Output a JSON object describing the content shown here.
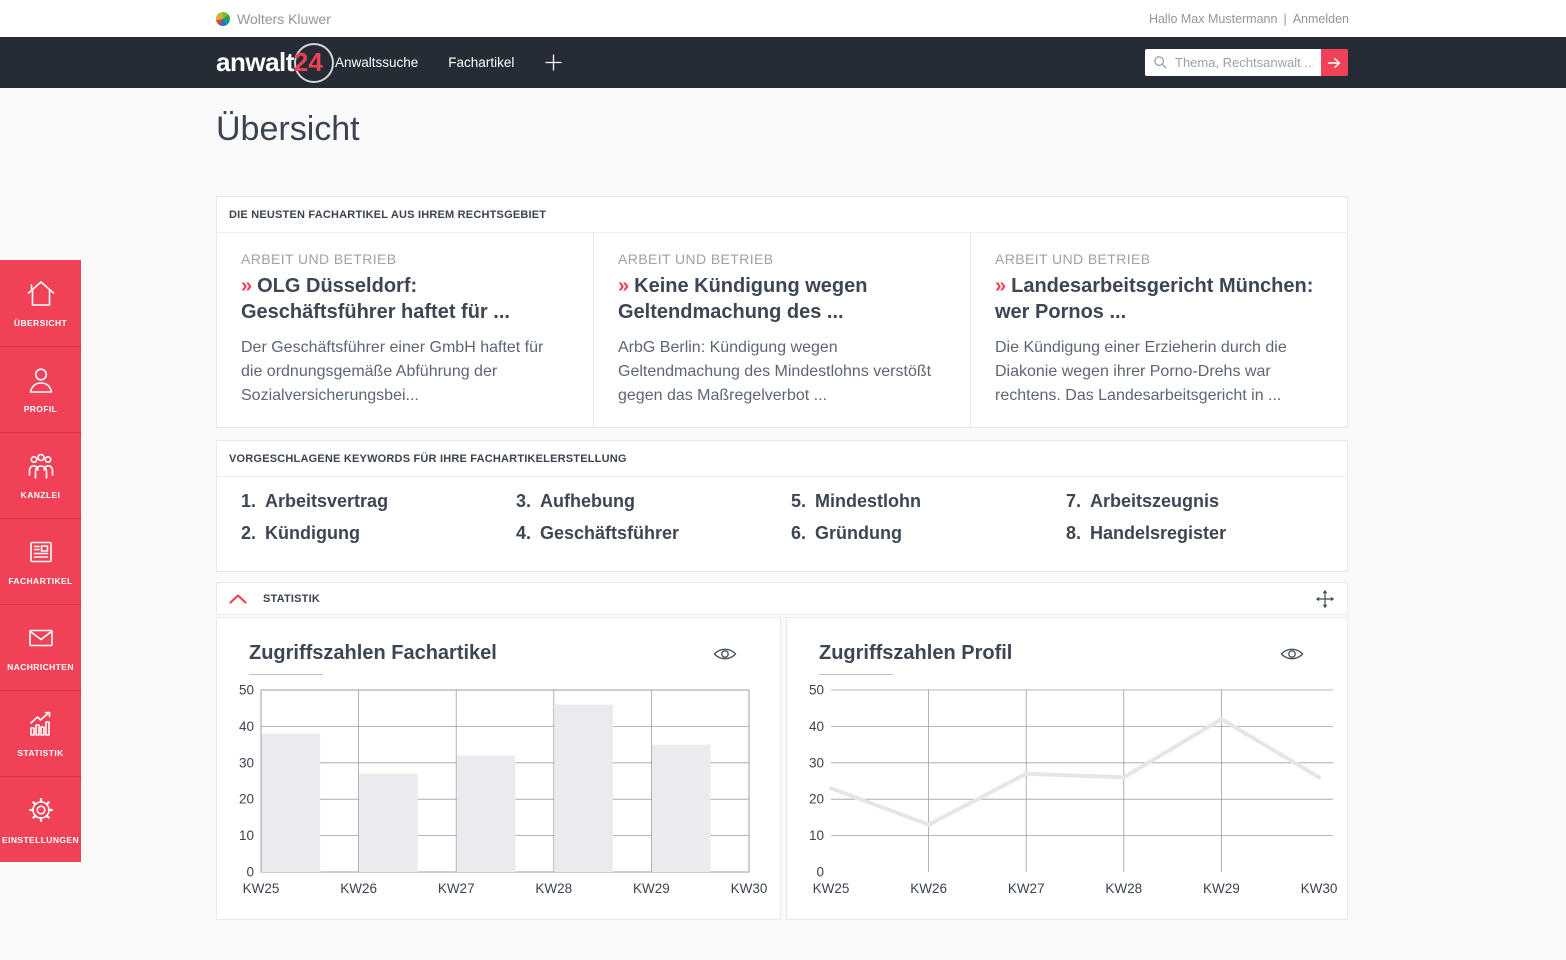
{
  "topbar": {
    "brand": "Wolters Kluwer",
    "greeting": "Hallo Max Mustermann",
    "separator": "|",
    "login": "Anmelden"
  },
  "navbar": {
    "logo_text": "anwalt",
    "logo_badge": "24",
    "links": [
      {
        "label": "Anwaltssuche"
      },
      {
        "label": "Fachartikel"
      }
    ],
    "search": {
      "placeholder": "Thema, Rechtsanwalt ..."
    }
  },
  "page": {
    "title": "Übersicht"
  },
  "sidebar": {
    "items": [
      {
        "label": "ÜBERSICHT",
        "icon": "home-icon"
      },
      {
        "label": "PROFIL",
        "icon": "user-icon"
      },
      {
        "label": "KANZLEI",
        "icon": "team-icon"
      },
      {
        "label": "FACHARTIKEL",
        "icon": "article-icon"
      },
      {
        "label": "NACHRICHTEN",
        "icon": "mail-icon"
      },
      {
        "label": "STATISTIK",
        "icon": "bar-chart-icon"
      },
      {
        "label": "EINSTELLUNGEN",
        "icon": "gear-icon"
      }
    ]
  },
  "sections": {
    "articles": {
      "header": "DIE NEUSTEN FACHARTIKEL AUS IHREM RECHTSGEBIET",
      "cards": [
        {
          "category": "ARBEIT UND BETRIEB",
          "title_marker": "»",
          "title": "OLG Düsseldorf: Geschäftsführer haftet für ...",
          "body": "Der Geschäftsführer einer GmbH haftet für die ordnungsgemäße Abführung der Sozialversicherungsbei..."
        },
        {
          "category": "ARBEIT UND BETRIEB",
          "title_marker": "»",
          "title": "Keine Kündigung wegen Geltendmachung des ...",
          "body": "ArbG Berlin: Kündigung wegen Geltendmachung des Mindestlohns verstößt gegen das Maßregelverbot ..."
        },
        {
          "category": "ARBEIT UND BETRIEB",
          "title_marker": "»",
          "title": "Landesarbeitsgericht München: wer Pornos ...",
          "body": "Die Kündigung einer Erzieherin durch die Diakonie wegen ihrer Porno-Drehs war rechtens. Das Landesarbeitsgericht in ..."
        }
      ]
    },
    "keywords": {
      "header": "VORGESCHLAGENE KEYWORDS FÜR IHRE FACHARTIKELERSTELLUNG",
      "items": [
        {
          "num": "1.",
          "label": "Arbeitsvertrag"
        },
        {
          "num": "2.",
          "label": "Kündigung"
        },
        {
          "num": "3.",
          "label": "Aufhebung"
        },
        {
          "num": "4.",
          "label": "Geschäftsführer"
        },
        {
          "num": "5.",
          "label": "Mindestlohn"
        },
        {
          "num": "6.",
          "label": "Gründung"
        },
        {
          "num": "7.",
          "label": "Arbeitszeugnis"
        },
        {
          "num": "8.",
          "label": "Handelsregister"
        }
      ]
    },
    "statistik": {
      "header": "STATISTIK"
    }
  },
  "chart_data": [
    {
      "type": "bar",
      "title": "Zugriffszahlen Fachartikel",
      "categories": [
        "KW25",
        "KW26",
        "KW27",
        "KW28",
        "KW29",
        "KW30"
      ],
      "values": [
        38,
        27,
        32,
        46,
        35,
        null
      ],
      "xlabel": "",
      "ylabel": "",
      "ylim": [
        0,
        50
      ],
      "yticks": [
        0,
        10,
        20,
        30,
        40,
        50
      ],
      "grid": true,
      "legend": "none",
      "bar_color": "#e9ebee"
    },
    {
      "type": "line",
      "title": "Zugriffszahlen Profil",
      "categories": [
        "KW25",
        "KW26",
        "KW27",
        "KW28",
        "KW29",
        "KW30"
      ],
      "values": [
        23,
        13,
        27,
        26,
        42,
        26
      ],
      "xlabel": "",
      "ylabel": "",
      "ylim": [
        0,
        50
      ],
      "yticks": [
        0,
        10,
        20,
        30,
        40,
        50
      ],
      "grid": true,
      "legend": "none",
      "line_color": "#e4e6e9"
    }
  ],
  "colors": {
    "accent": "#f04156",
    "navbar_bg": "#262c35",
    "heading": "#3b4350",
    "body_text": "#5c6673",
    "muted": "#9ba1a9",
    "grid": "#9aa1a9"
  }
}
